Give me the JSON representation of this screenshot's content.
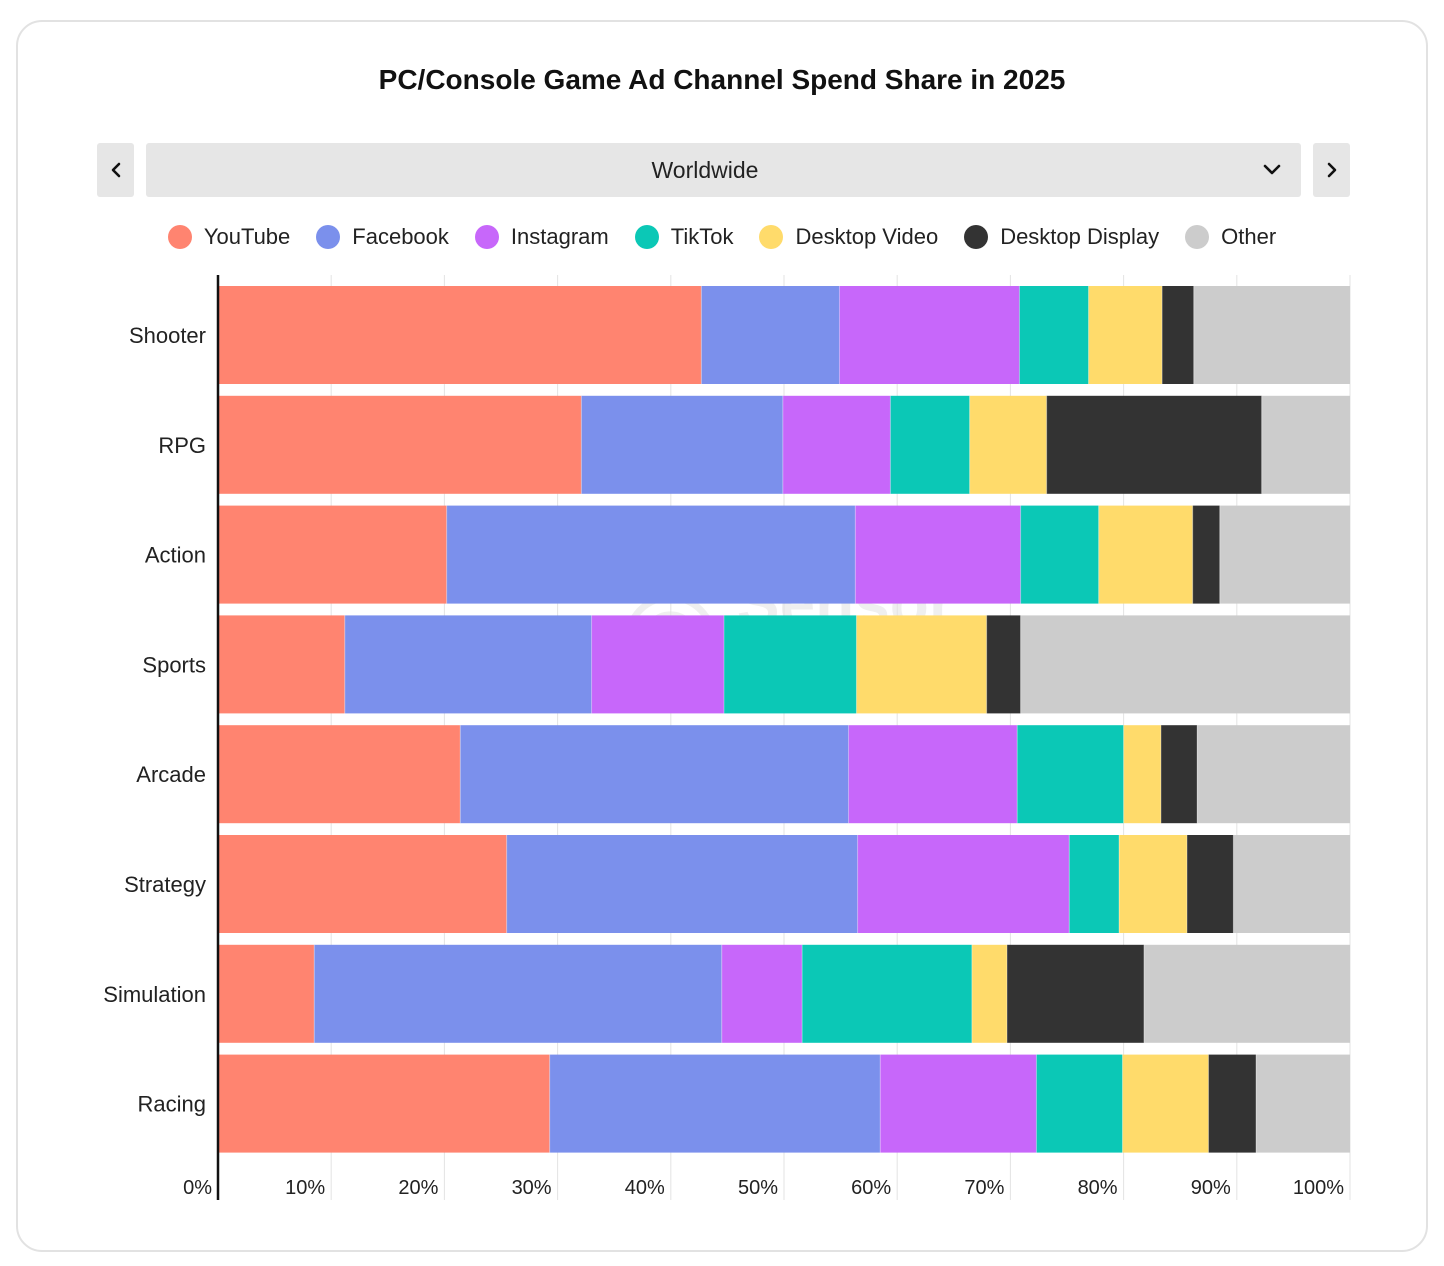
{
  "title": "PC/Console Game Ad Channel Spend Share in 2025",
  "region_selector": {
    "value": "Worldwide"
  },
  "watermark": "Sensor Tower",
  "colors": {
    "YouTube": "#FF8470",
    "Facebook": "#7B90EC",
    "Instagram": "#C767FA",
    "TikTok": "#0BC8B6",
    "Desktop Video": "#FFDB6B",
    "Desktop Display": "#333333",
    "Other": "#CCCCCC"
  },
  "chart_data": {
    "type": "bar",
    "orientation": "horizontal",
    "stacked": true,
    "title": "PC/Console Game Ad Channel Spend Share in 2025",
    "categories": [
      "Shooter",
      "RPG",
      "Action",
      "Sports",
      "Arcade",
      "Strategy",
      "Simulation",
      "Racing"
    ],
    "series": [
      {
        "name": "YouTube",
        "values": [
          42.7,
          32.1,
          20.2,
          11.2,
          21.4,
          25.5,
          8.5,
          29.3
        ]
      },
      {
        "name": "Facebook",
        "values": [
          12.2,
          17.8,
          36.1,
          21.8,
          34.3,
          31.0,
          36.0,
          29.2
        ]
      },
      {
        "name": "Instagram",
        "values": [
          15.9,
          9.5,
          14.6,
          11.7,
          14.9,
          18.7,
          7.1,
          13.8
        ]
      },
      {
        "name": "TikTok",
        "values": [
          6.1,
          7.0,
          6.9,
          11.7,
          9.4,
          4.4,
          15.0,
          7.6
        ]
      },
      {
        "name": "Desktop Video",
        "values": [
          6.5,
          6.8,
          8.3,
          11.5,
          3.3,
          6.0,
          3.1,
          7.6
        ]
      },
      {
        "name": "Desktop Display",
        "values": [
          2.8,
          19.0,
          2.4,
          3.0,
          3.2,
          4.1,
          12.1,
          4.2
        ]
      },
      {
        "name": "Other",
        "values": [
          13.8,
          7.8,
          11.5,
          29.1,
          13.5,
          10.3,
          18.2,
          8.3
        ]
      }
    ],
    "xlim": [
      0,
      100
    ],
    "x_ticks": [
      "0%",
      "10%",
      "20%",
      "30%",
      "40%",
      "50%",
      "60%",
      "70%",
      "80%",
      "90%",
      "100%"
    ],
    "xlabel": "",
    "ylabel": "",
    "legend_position": "top-center",
    "grid": true
  }
}
